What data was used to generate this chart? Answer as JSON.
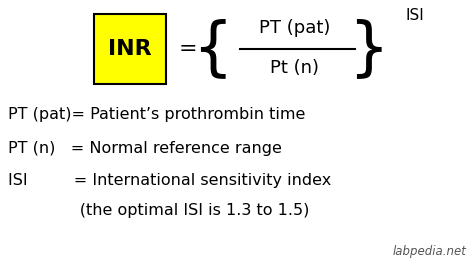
{
  "bg_color": "#ffffff",
  "inr_box_color": "#ffff00",
  "inr_box_edgecolor": "#000000",
  "inr_text": "INR",
  "inr_text_color": "#000000",
  "equals_sign": "=",
  "numerator": "PT (pat)",
  "denominator": "Pt (n)",
  "exponent": "ISI",
  "brace_open": "{",
  "brace_close": "}",
  "line1": "PT (pat)= Patient’s prothrombin time",
  "line2": "PT (n)   = Normal reference range",
  "line3": "ISI         = International sensitivity index",
  "line4": "              (the optimal ISI is 1.3 to 1.5)",
  "watermark": "labpedia.net",
  "main_fontsize": 11.5,
  "formula_fontsize": 13,
  "inr_fontsize": 16,
  "brace_fontsize": 46,
  "eq_fontsize": 16,
  "isi_fontsize": 11
}
